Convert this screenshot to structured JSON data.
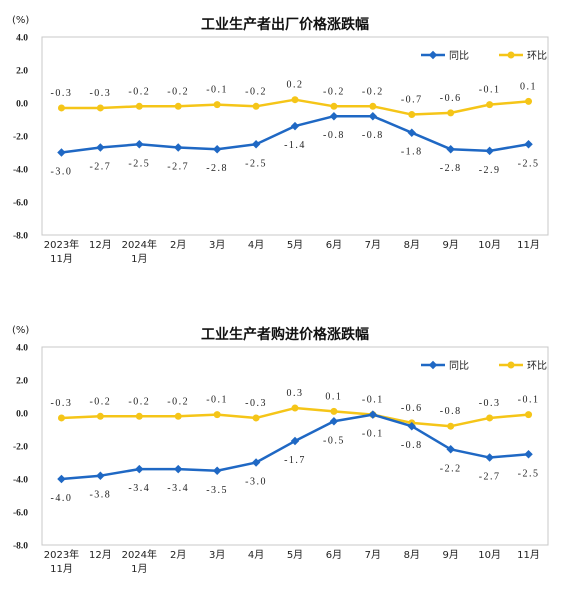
{
  "chart_data": [
    {
      "type": "line",
      "title": "工业生产者出厂价格涨跌幅",
      "ylabel": "(%)",
      "xlabel": "",
      "ylim": [
        -8.0,
        4.0
      ],
      "yticks": [
        "4.0",
        "2.0",
        "0.0",
        "-2.0",
        "-4.0",
        "-6.0",
        "-8.0"
      ],
      "categories": [
        [
          "2023年",
          "11月"
        ],
        [
          "12月"
        ],
        [
          "2024年",
          "1月"
        ],
        [
          "2月"
        ],
        [
          "3月"
        ],
        [
          "4月"
        ],
        [
          "5月"
        ],
        [
          "6月"
        ],
        [
          "7月"
        ],
        [
          "8月"
        ],
        [
          "9月"
        ],
        [
          "10月"
        ],
        [
          "11月"
        ]
      ],
      "legend_position": "top-right",
      "grid": false,
      "series": [
        {
          "name": "同比",
          "color": "#1f68c4",
          "marker": "diamond",
          "values": [
            -3.0,
            -2.7,
            -2.5,
            -2.7,
            -2.8,
            -2.5,
            -1.4,
            -0.8,
            -0.8,
            -1.8,
            -2.8,
            -2.9,
            -2.5
          ],
          "labels": [
            "-3.0",
            "-2.7",
            "-2.5",
            "-2.7",
            "-2.8",
            "-2.5",
            "-1.4",
            "-0.8",
            "-0.8",
            "-1.8",
            "-2.8",
            "-2.9",
            "-2.5"
          ]
        },
        {
          "name": "环比",
          "color": "#f5c518",
          "marker": "circle",
          "values": [
            -0.3,
            -0.3,
            -0.2,
            -0.2,
            -0.1,
            -0.2,
            0.2,
            -0.2,
            -0.2,
            -0.7,
            -0.6,
            -0.1,
            0.1
          ],
          "labels": [
            "-0.3",
            "-0.3",
            "-0.2",
            "-0.2",
            "-0.1",
            "-0.2",
            "0.2",
            "-0.2",
            "-0.2",
            "-0.7",
            "-0.6",
            "-0.1",
            "0.1"
          ]
        }
      ]
    },
    {
      "type": "line",
      "title": "工业生产者购进价格涨跌幅",
      "ylabel": "(%)",
      "xlabel": "",
      "ylim": [
        -8.0,
        4.0
      ],
      "yticks": [
        "4.0",
        "2.0",
        "0.0",
        "-2.0",
        "-4.0",
        "-6.0",
        "-8.0"
      ],
      "categories": [
        [
          "2023年",
          "11月"
        ],
        [
          "12月"
        ],
        [
          "2024年",
          "1月"
        ],
        [
          "2月"
        ],
        [
          "3月"
        ],
        [
          "4月"
        ],
        [
          "5月"
        ],
        [
          "6月"
        ],
        [
          "7月"
        ],
        [
          "8月"
        ],
        [
          "9月"
        ],
        [
          "10月"
        ],
        [
          "11月"
        ]
      ],
      "legend_position": "top-right",
      "grid": false,
      "series": [
        {
          "name": "同比",
          "color": "#1f68c4",
          "marker": "diamond",
          "values": [
            -4.0,
            -3.8,
            -3.4,
            -3.4,
            -3.5,
            -3.0,
            -1.7,
            -0.5,
            -0.1,
            -0.8,
            -2.2,
            -2.7,
            -2.5
          ],
          "labels": [
            "-4.0",
            "-3.8",
            "-3.4",
            "-3.4",
            "-3.5",
            "-3.0",
            "-1.7",
            "-0.5",
            "-0.1",
            "-0.8",
            "-2.2",
            "-2.7",
            "-2.5"
          ]
        },
        {
          "name": "环比",
          "color": "#f5c518",
          "marker": "circle",
          "values": [
            -0.3,
            -0.2,
            -0.2,
            -0.2,
            -0.1,
            -0.3,
            0.3,
            0.1,
            -0.1,
            -0.6,
            -0.8,
            -0.3,
            -0.1
          ],
          "labels": [
            "-0.3",
            "-0.2",
            "-0.2",
            "-0.2",
            "-0.1",
            "-0.3",
            "0.3",
            "0.1",
            "-0.1",
            "-0.6",
            "-0.8",
            "-0.3",
            "-0.1"
          ]
        }
      ]
    }
  ]
}
